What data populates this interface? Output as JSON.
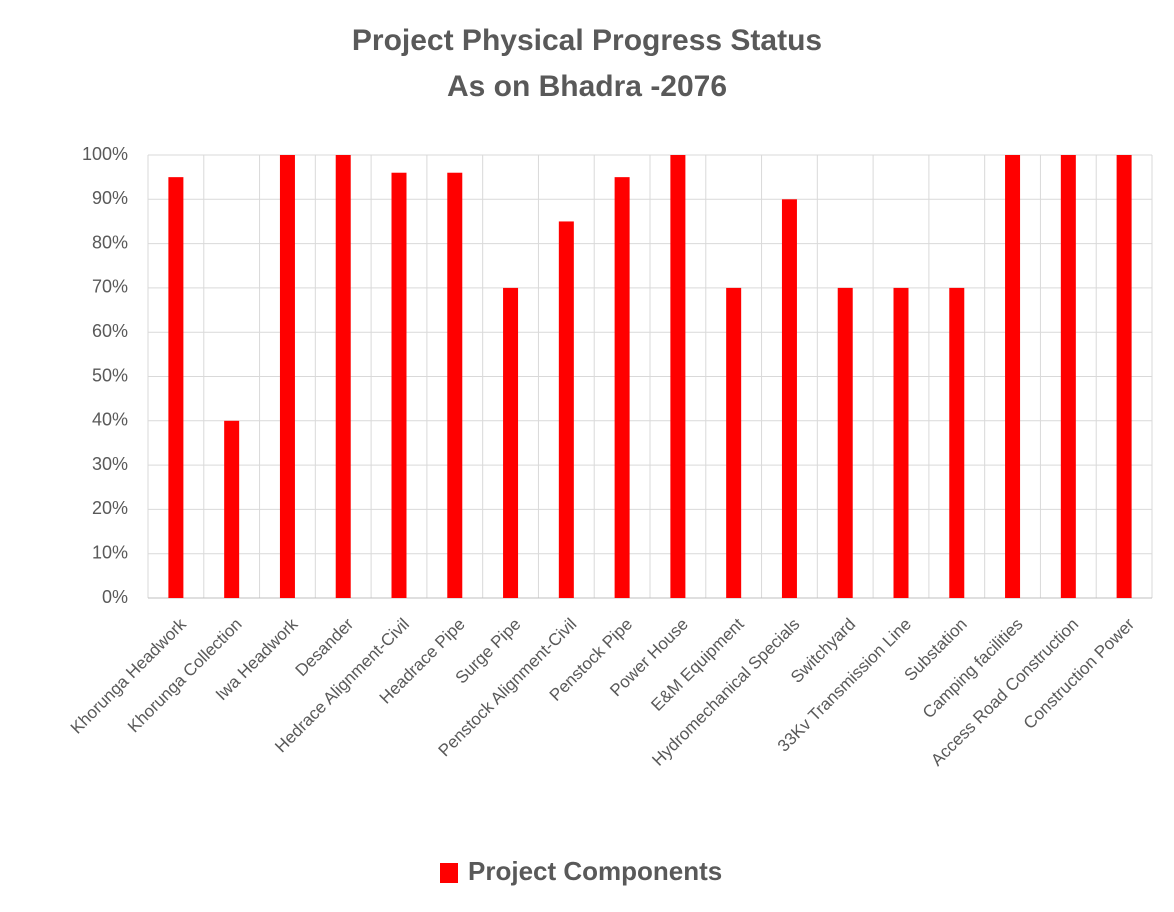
{
  "chart_data": {
    "type": "bar",
    "title": "Project Physical Progress Status",
    "subtitle": "As on Bhadra -2076",
    "categories": [
      "Khorunga Headwork",
      "Khorunga Collection",
      "Iwa Headwork",
      "Desander",
      "Hedrace Alignment-Civil",
      "Headrace Pipe",
      "Surge Pipe",
      "Penstock Alignment-Civil",
      "Penstock Pipe",
      "Power House",
      "E&M Equipment",
      "Hydromechanical Specials",
      "Switchyard",
      "33Kv Transmission Line",
      "Substation",
      "Camping facilities",
      "Access Road Construction",
      "Construction Power"
    ],
    "series": [
      {
        "name": "Project Components",
        "color": "#ff0000",
        "values": [
          95,
          40,
          100,
          100,
          96,
          96,
          70,
          85,
          95,
          100,
          70,
          90,
          70,
          70,
          70,
          100,
          100,
          100
        ]
      }
    ],
    "ylim": [
      0,
      100
    ],
    "yticks": [
      {
        "value": 0,
        "label": "0%"
      },
      {
        "value": 10,
        "label": "10%"
      },
      {
        "value": 20,
        "label": "20%"
      },
      {
        "value": 30,
        "label": "30%"
      },
      {
        "value": 40,
        "label": "40%"
      },
      {
        "value": 50,
        "label": "50%"
      },
      {
        "value": 60,
        "label": "60%"
      },
      {
        "value": 70,
        "label": "70%"
      },
      {
        "value": 80,
        "label": "80%"
      },
      {
        "value": 90,
        "label": "90%"
      },
      {
        "value": 100,
        "label": "100%"
      }
    ],
    "grid": true,
    "legend": "bottom"
  }
}
